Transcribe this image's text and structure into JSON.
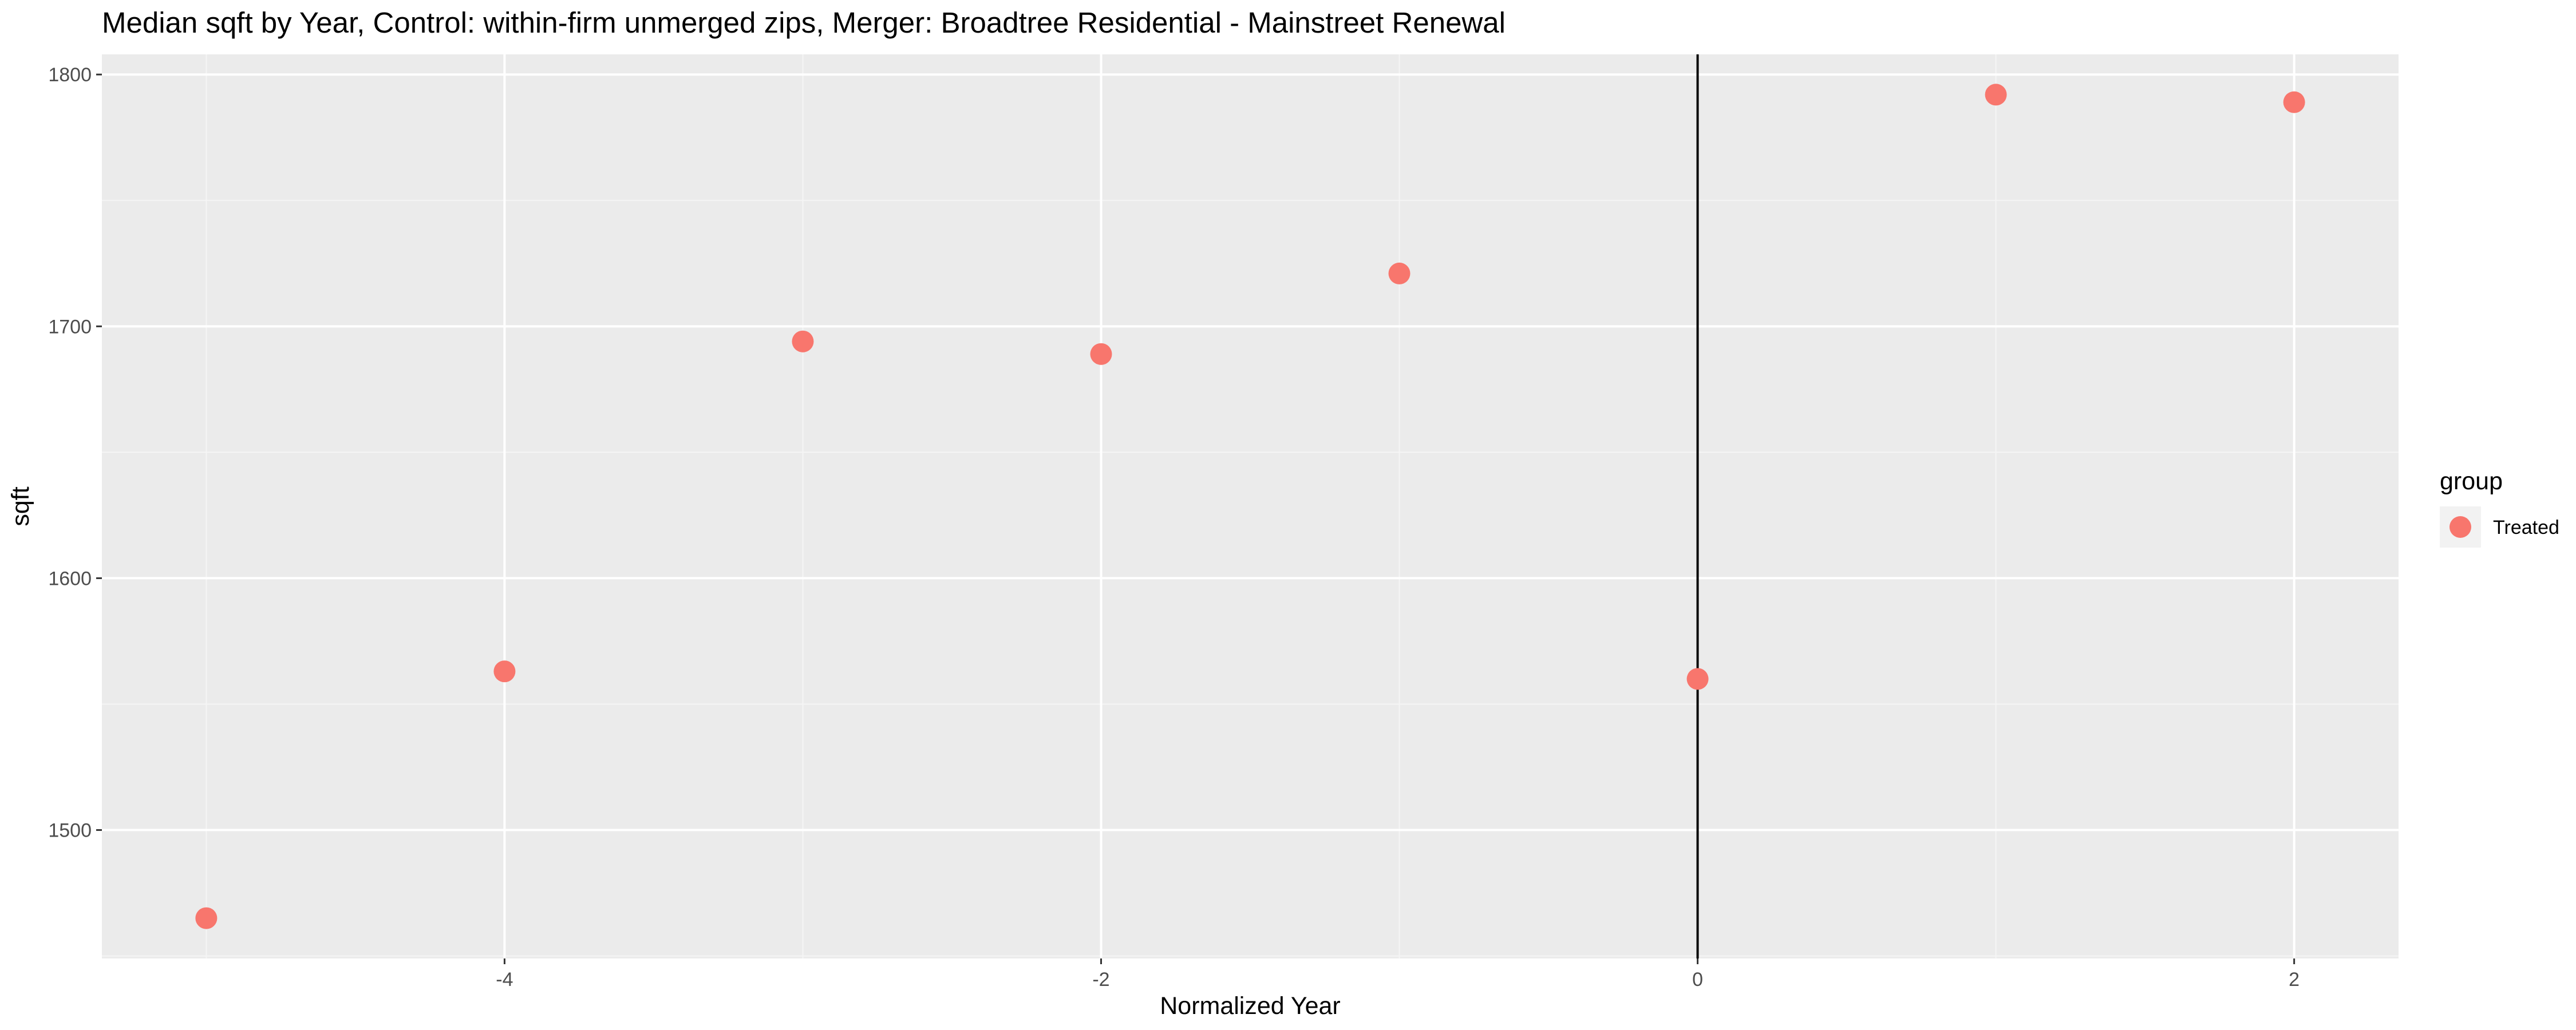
{
  "chart_data": {
    "type": "scatter",
    "title": "Median sqft by Year, Control: within-firm unmerged zips, Merger: Broadtree Residential - Mainstreet Renewal",
    "xlabel": "Normalized Year",
    "ylabel": "sqft",
    "xlim": [
      -5.35,
      2.35
    ],
    "ylim": [
      1449,
      1808
    ],
    "x_ticks": [
      -4,
      -2,
      0,
      2
    ],
    "x_tick_labels": [
      "-4",
      "-2",
      "0",
      "2"
    ],
    "y_ticks": [
      1500,
      1600,
      1700,
      1800
    ],
    "y_tick_labels": [
      "1500",
      "1600",
      "1700",
      "1800"
    ],
    "grid": true,
    "vline_x": 0,
    "legend": {
      "title": "group",
      "placement": "right",
      "entries": [
        {
          "label": "Treated",
          "color": "#F8766D"
        }
      ]
    },
    "series": [
      {
        "name": "Treated",
        "color": "#F8766D",
        "points": [
          {
            "x": -5,
            "y": 1465
          },
          {
            "x": -4,
            "y": 1563
          },
          {
            "x": -3,
            "y": 1694
          },
          {
            "x": -2,
            "y": 1689
          },
          {
            "x": -1,
            "y": 1721
          },
          {
            "x": 0,
            "y": 1560
          },
          {
            "x": 1,
            "y": 1792
          },
          {
            "x": 2,
            "y": 1789
          }
        ]
      }
    ]
  },
  "colors": {
    "panel_background": "#EBEBEB",
    "grid_major": "#FFFFFF",
    "grid_minor": "#F5F5F5",
    "vline": "#000000",
    "tick_text": "#4D4D4D"
  }
}
